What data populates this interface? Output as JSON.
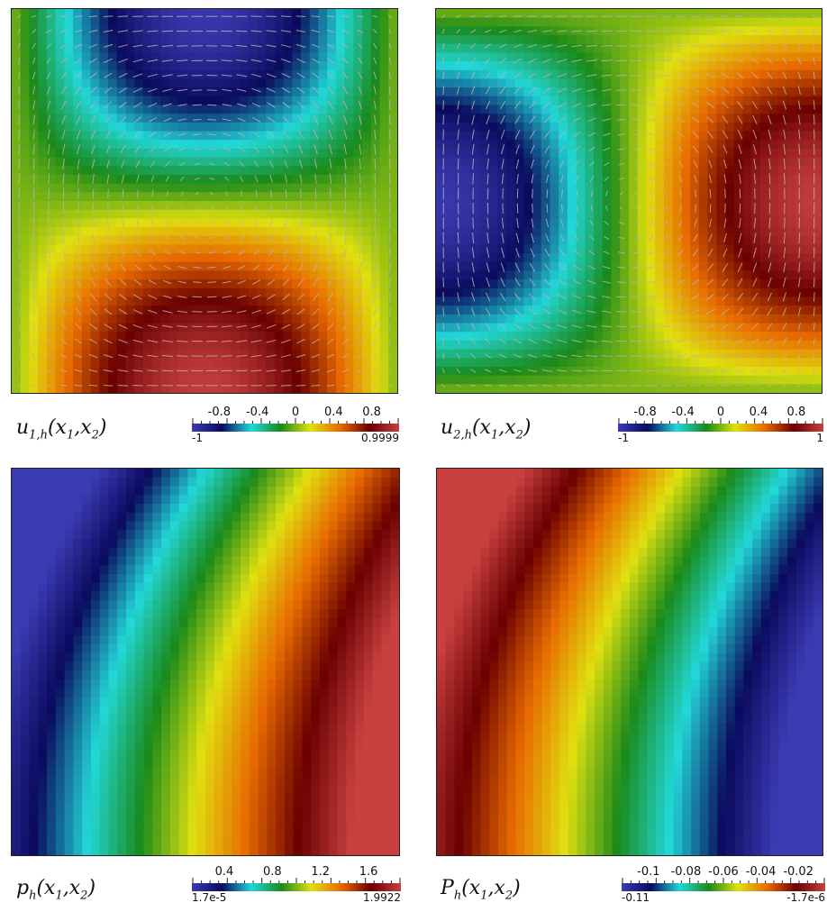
{
  "colormap": [
    "#3b3bb3",
    "#0a0a5e",
    "#22d8d8",
    "#1a8a1a",
    "#e0e010",
    "#e86a00",
    "#6a0000",
    "#c84040"
  ],
  "panels": [
    {
      "id": "u1",
      "label": {
        "var": "u",
        "sub": "1,h",
        "args": "(x",
        "a1": "1",
        "mid": ",x",
        "a2": "2",
        "end": ")"
      },
      "colorbar": {
        "ticks": [
          "-0.8",
          "-0.4",
          "0",
          "0.4",
          "0.8"
        ],
        "min": "-1",
        "max": "0.9999"
      },
      "field": "u1",
      "arrows": true
    },
    {
      "id": "u2",
      "label": {
        "var": "u",
        "sub": "2,h",
        "args": "(x",
        "a1": "1",
        "mid": ",x",
        "a2": "2",
        "end": ")"
      },
      "colorbar": {
        "ticks": [
          "-0.8",
          "-0.4",
          "0",
          "0.4",
          "0.8"
        ],
        "min": "-1",
        "max": "1"
      },
      "field": "u2",
      "arrows": true
    },
    {
      "id": "p",
      "label": {
        "var": "p",
        "sub": "h",
        "args": "(x",
        "a1": "1",
        "mid": ",x",
        "a2": "2",
        "end": ")"
      },
      "colorbar": {
        "ticks": [
          "0.4",
          "0.8",
          "1.2",
          "1.6"
        ],
        "min": "1.7e-5",
        "max": "1.9922"
      },
      "field": "p",
      "arrows": false
    },
    {
      "id": "P",
      "label": {
        "var": "P",
        "sub": "h",
        "args": "(x",
        "a1": "1",
        "mid": ",x",
        "a2": "2",
        "end": ")"
      },
      "colorbar": {
        "ticks": [
          "-0.1",
          "-0.08",
          "-0.06",
          "-0.04",
          "-0.02"
        ],
        "min": "-0.11",
        "max": "-1.7e-6"
      },
      "field": "P",
      "arrows": false
    }
  ]
}
